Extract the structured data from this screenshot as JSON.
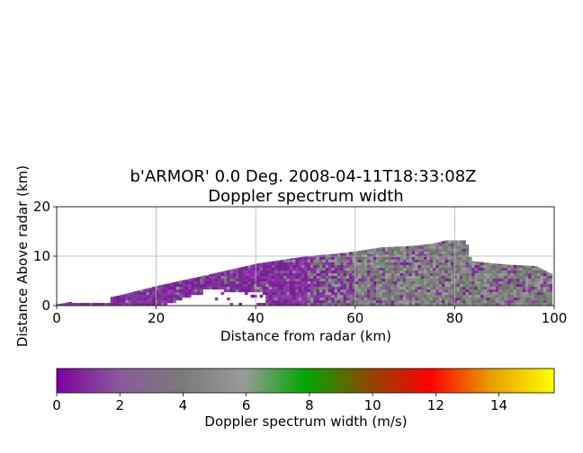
{
  "chart_data": {
    "type": "heatmap",
    "title": "b'ARMOR' 0.0 Deg. 2008-04-11T18:33:08Z",
    "subtitle": "Doppler spectrum width",
    "xlabel": "Distance from radar (km)",
    "ylabel": "Distance Above radar  (km)",
    "xlim": [
      0,
      100
    ],
    "ylim": [
      0,
      20
    ],
    "xticks": [
      "0",
      "20",
      "40",
      "60",
      "80",
      "100"
    ],
    "yticks": [
      "0",
      "10",
      "20"
    ],
    "grid": true,
    "echo_top_km": [
      [
        0,
        0.3
      ],
      [
        5,
        1.2
      ],
      [
        10,
        1.6
      ],
      [
        12,
        2.0
      ],
      [
        20,
        4.0
      ],
      [
        30,
        6.2
      ],
      [
        40,
        8.5
      ],
      [
        50,
        10.0
      ],
      [
        55,
        10.4
      ],
      [
        60,
        11.0
      ],
      [
        65,
        11.8
      ],
      [
        70,
        12.0
      ],
      [
        75,
        12.5
      ],
      [
        78,
        13.2
      ],
      [
        82,
        13.2
      ],
      [
        83,
        9.0
      ],
      [
        90,
        8.3
      ],
      [
        96,
        8.0
      ],
      [
        99,
        6.5
      ]
    ],
    "colorbar": {
      "label": "Doppler spectrum width (m/s)",
      "range": [
        0,
        15.75
      ],
      "ticks": [
        "0",
        "2",
        "4",
        "6",
        "8",
        "10",
        "12",
        "14"
      ],
      "colors": [
        "#7d00a0",
        "#8a5a9a",
        "#7a7a7a",
        "#9a9a9a",
        "#00a800",
        "#8a4a00",
        "#ff0000",
        "#e8a000",
        "#ffff00"
      ]
    }
  }
}
